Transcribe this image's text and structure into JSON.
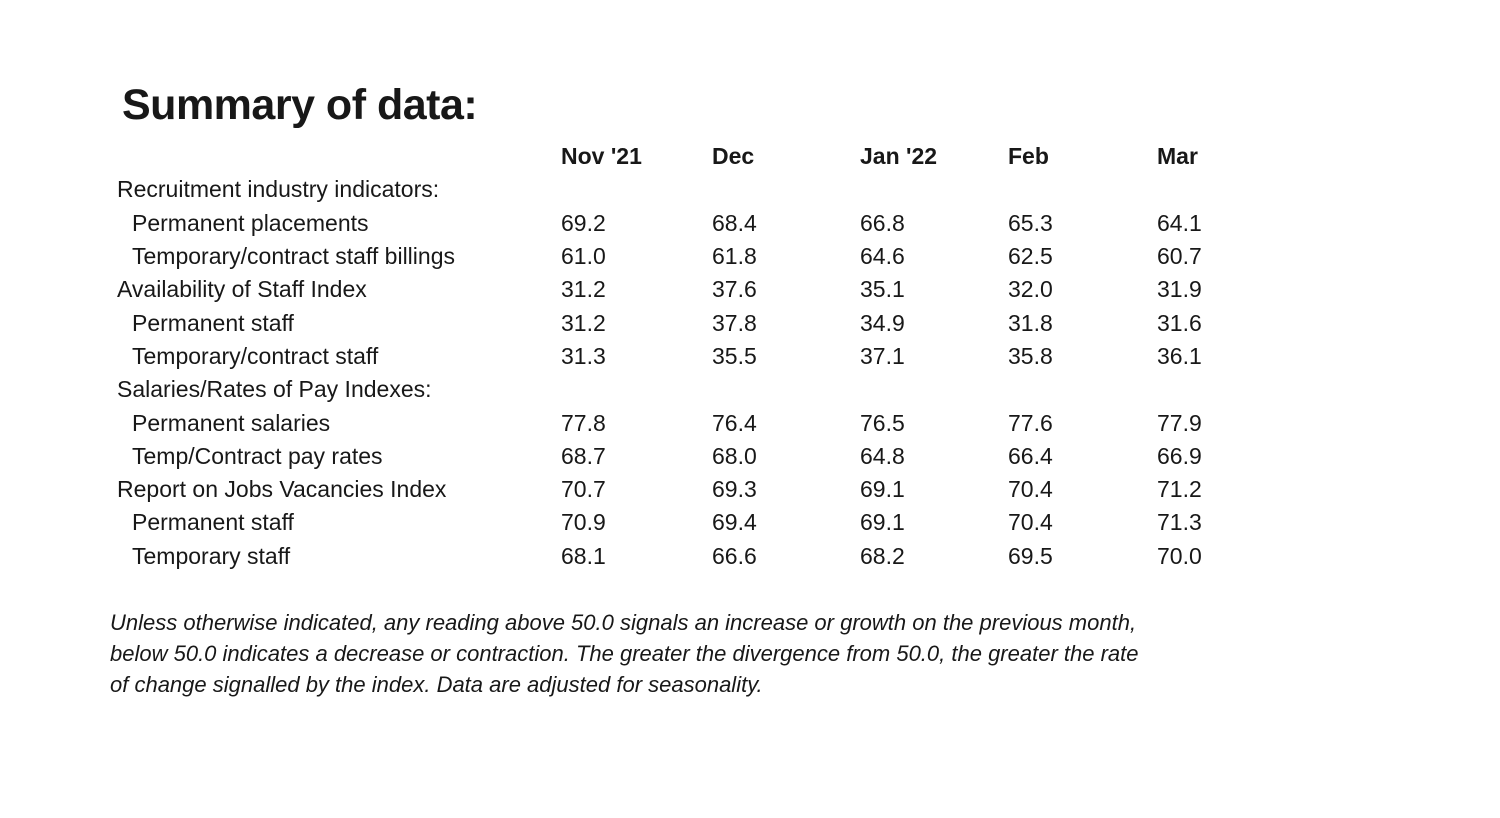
{
  "page": {
    "title": "Summary of data:"
  },
  "colors": {
    "background": "#ffffff",
    "text": "#181818"
  },
  "table": {
    "columns": [
      "Nov '21",
      "Dec",
      "Jan '22",
      "Feb",
      "Mar"
    ],
    "rows": [
      {
        "label": "Recruitment industry indicators:",
        "indent": 0,
        "values": [
          "",
          "",
          "",
          "",
          ""
        ]
      },
      {
        "label": "Permanent placements",
        "indent": 1,
        "values": [
          "69.2",
          "68.4",
          "66.8",
          "65.3",
          "64.1"
        ]
      },
      {
        "label": "Temporary/contract staff billings",
        "indent": 1,
        "values": [
          "61.0",
          "61.8",
          "64.6",
          "62.5",
          "60.7"
        ]
      },
      {
        "label": "Availability of Staff Index",
        "indent": 0,
        "values": [
          "31.2",
          "37.6",
          "35.1",
          "32.0",
          "31.9"
        ]
      },
      {
        "label": "Permanent staff",
        "indent": 1,
        "values": [
          "31.2",
          "37.8",
          "34.9",
          "31.8",
          "31.6"
        ]
      },
      {
        "label": "Temporary/contract staff",
        "indent": 1,
        "values": [
          "31.3",
          "35.5",
          "37.1",
          "35.8",
          "36.1"
        ]
      },
      {
        "label": "Salaries/Rates of Pay Indexes:",
        "indent": 0,
        "values": [
          "",
          "",
          "",
          "",
          ""
        ]
      },
      {
        "label": "Permanent salaries",
        "indent": 1,
        "values": [
          "77.8",
          "76.4",
          "76.5",
          "77.6",
          "77.9"
        ]
      },
      {
        "label": "Temp/Contract pay rates",
        "indent": 1,
        "values": [
          "68.7",
          "68.0",
          "64.8",
          "66.4",
          "66.9"
        ]
      },
      {
        "label": "Report on Jobs Vacancies Index",
        "indent": 0,
        "values": [
          "70.7",
          "69.3",
          "69.1",
          "70.4",
          "71.2"
        ]
      },
      {
        "label": "Permanent staff",
        "indent": 1,
        "values": [
          "70.9",
          "69.4",
          "69.1",
          "70.4",
          "71.3"
        ]
      },
      {
        "label": "Temporary staff",
        "indent": 1,
        "values": [
          "68.1",
          "66.6",
          "68.2",
          "69.5",
          "70.0"
        ]
      }
    ]
  },
  "footnote": {
    "lines": [
      "Unless otherwise indicated, any reading above 50.0 signals an increase or growth on the previous month,",
      "below 50.0 indicates a decrease or contraction. The greater the divergence from 50.0, the greater the rate",
      "of change signalled by the index. Data are adjusted for seasonality."
    ]
  }
}
